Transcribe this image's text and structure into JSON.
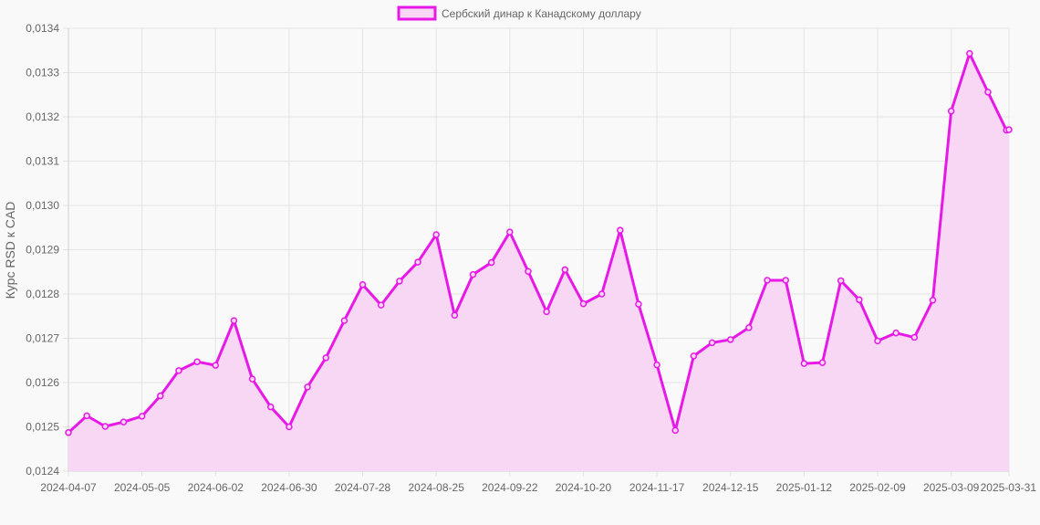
{
  "chart_data": {
    "type": "line",
    "title": "",
    "xlabel": "",
    "ylabel": "Курс RSD к CAD",
    "legend_position": "top-center",
    "grid": true,
    "ylim": [
      0.0124,
      0.0134
    ],
    "y_ticks": [
      "0,0124",
      "0,0125",
      "0,0126",
      "0,0127",
      "0,0128",
      "0,0129",
      "0,0130",
      "0,0131",
      "0,0132",
      "0,0133",
      "0,0134"
    ],
    "x_tick_labels": [
      "2024-04-07",
      "2024-05-05",
      "2024-06-02",
      "2024-06-30",
      "2024-07-28",
      "2024-08-25",
      "2024-09-22",
      "2024-10-20",
      "2024-11-17",
      "2024-12-15",
      "2025-01-12",
      "2025-02-09",
      "2025-03-09",
      "2025-03-31"
    ],
    "series": [
      {
        "name": "Сербский динар к Канадскому доллару",
        "color": "#e619e6",
        "fill": "#f8d7f5",
        "x": [
          "2024-04-07",
          "2024-04-14",
          "2024-04-21",
          "2024-04-28",
          "2024-05-05",
          "2024-05-12",
          "2024-05-19",
          "2024-05-26",
          "2024-06-02",
          "2024-06-09",
          "2024-06-16",
          "2024-06-23",
          "2024-06-30",
          "2024-07-07",
          "2024-07-14",
          "2024-07-21",
          "2024-07-28",
          "2024-08-04",
          "2024-08-11",
          "2024-08-18",
          "2024-08-25",
          "2024-09-01",
          "2024-09-08",
          "2024-09-15",
          "2024-09-22",
          "2024-09-29",
          "2024-10-06",
          "2024-10-13",
          "2024-10-20",
          "2024-10-27",
          "2024-11-03",
          "2024-11-10",
          "2024-11-17",
          "2024-11-24",
          "2024-12-01",
          "2024-12-08",
          "2024-12-15",
          "2024-12-22",
          "2024-12-29",
          "2025-01-05",
          "2025-01-12",
          "2025-01-19",
          "2025-01-26",
          "2025-02-02",
          "2025-02-09",
          "2025-02-16",
          "2025-02-23",
          "2025-03-02",
          "2025-03-09",
          "2025-03-16",
          "2025-03-23",
          "2025-03-30",
          "2025-03-31"
        ],
        "values": [
          0.012487,
          0.012525,
          0.012501,
          0.012511,
          0.012524,
          0.01257,
          0.012627,
          0.012647,
          0.012639,
          0.01274,
          0.012608,
          0.012545,
          0.0125,
          0.01259,
          0.012656,
          0.01274,
          0.012821,
          0.012775,
          0.012829,
          0.012872,
          0.012934,
          0.012752,
          0.012844,
          0.012871,
          0.01294,
          0.012851,
          0.01276,
          0.012855,
          0.012778,
          0.0128,
          0.012944,
          0.012777,
          0.01264,
          0.012492,
          0.01266,
          0.01269,
          0.012697,
          0.012724,
          0.012831,
          0.012831,
          0.012643,
          0.012645,
          0.01283,
          0.012787,
          0.012694,
          0.012712,
          0.012702,
          0.012786,
          0.013213,
          0.013343,
          0.013256,
          0.01317,
          0.013171
        ]
      }
    ]
  }
}
